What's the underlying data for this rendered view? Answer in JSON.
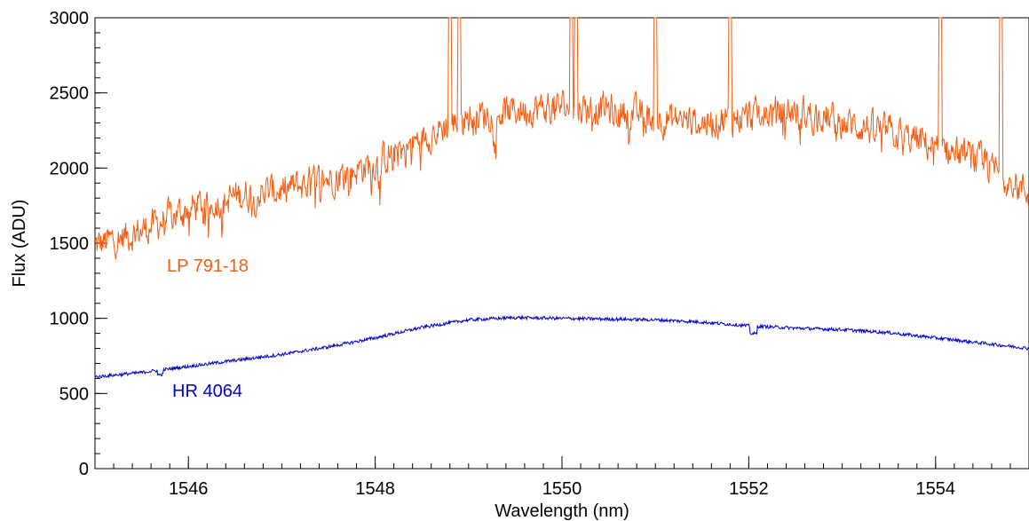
{
  "chart_data": {
    "type": "line",
    "xlabel": "Wavelength (nm)",
    "ylabel": "Flux (ADU)",
    "xlim": [
      1545.0,
      1555.0
    ],
    "ylim": [
      0,
      3000
    ],
    "x_major_ticks": [
      1546,
      1548,
      1550,
      1552,
      1554
    ],
    "x_minor_step": 0.2,
    "y_major_ticks": [
      0,
      500,
      1000,
      1500,
      2000,
      2500,
      3000
    ],
    "y_minor_step": 100,
    "grid": false,
    "series": [
      {
        "name": "LP 791-18",
        "color": "#f25d13",
        "trend": {
          "x": [
            1545.0,
            1545.5,
            1546.0,
            1546.5,
            1547.0,
            1547.5,
            1548.0,
            1548.5,
            1549.0,
            1549.5,
            1550.0,
            1550.5,
            1551.0,
            1551.5,
            1552.0,
            1552.5,
            1553.0,
            1553.5,
            1554.0,
            1554.5,
            1555.0
          ],
          "y": [
            1500,
            1600,
            1750,
            1830,
            1870,
            1950,
            2050,
            2220,
            2360,
            2400,
            2430,
            2410,
            2350,
            2320,
            2360,
            2400,
            2320,
            2260,
            2160,
            2060,
            1850
          ]
        },
        "emission_spikes": [
          1548.8,
          1548.9,
          1550.1,
          1550.15,
          1551.0,
          1551.8,
          1554.05,
          1554.7
        ]
      },
      {
        "name": "HR 4064",
        "color": "#0000cc",
        "x": [
          1545.0,
          1545.5,
          1546.0,
          1546.5,
          1547.0,
          1547.5,
          1548.0,
          1548.5,
          1549.0,
          1549.5,
          1550.0,
          1550.5,
          1551.0,
          1551.5,
          1552.0,
          1552.5,
          1553.0,
          1553.5,
          1554.0,
          1554.5,
          1555.0
        ],
        "y": [
          610,
          640,
          680,
          720,
          760,
          810,
          870,
          940,
          990,
          1005,
          1000,
          995,
          990,
          975,
          950,
          935,
          925,
          905,
          870,
          835,
          800
        ]
      }
    ]
  }
}
